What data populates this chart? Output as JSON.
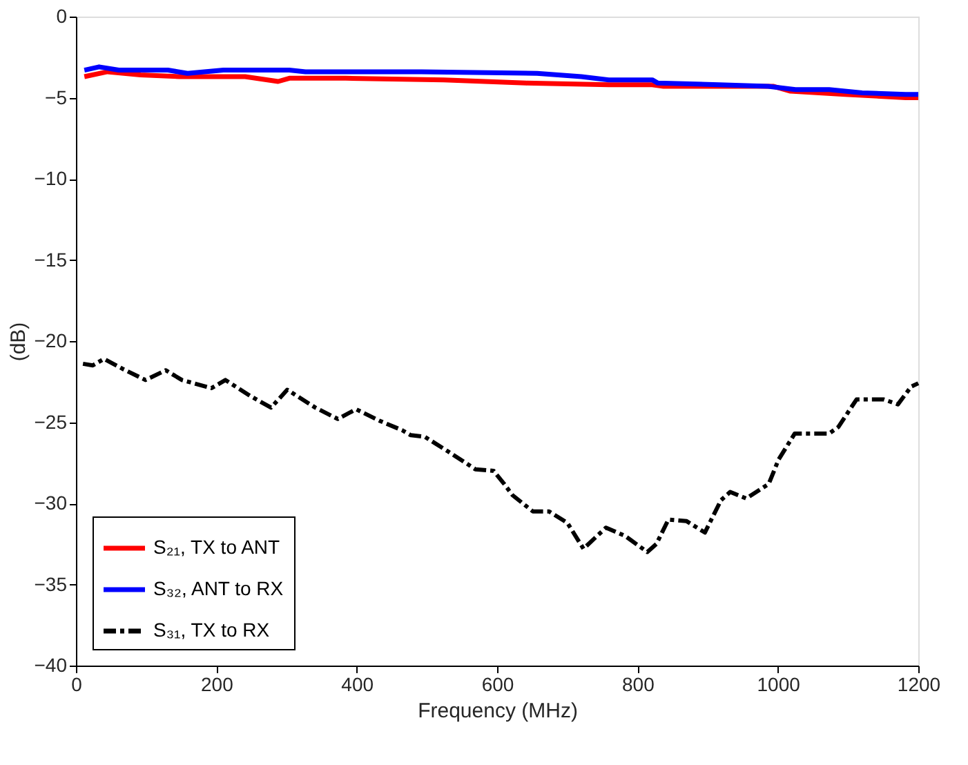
{
  "chart_data": {
    "type": "line",
    "xlabel": "Frequency (MHz)",
    "ylabel": "(dB)",
    "xlim": [
      0,
      1200
    ],
    "xticks": [
      0,
      200,
      400,
      600,
      800,
      1000,
      1200
    ],
    "ylim": [
      -40,
      0
    ],
    "yticks": [
      -40,
      -35,
      -30,
      -25,
      -20,
      -15,
      -10,
      -5,
      0
    ],
    "grid": false,
    "legend": "bottom left",
    "series": [
      {
        "name": "S₂₁, TX to ANT",
        "color": "#ff0000",
        "line_style": "solid",
        "x": [
          12,
          45,
          92,
          147,
          241,
          288,
          304,
          384,
          524,
          641,
          759,
          821,
          837,
          994,
          1018,
          1096,
          1182,
          1200
        ],
        "values": [
          -3.7,
          -3.4,
          -3.6,
          -3.7,
          -3.7,
          -4.0,
          -3.8,
          -3.8,
          -3.9,
          -4.1,
          -4.2,
          -4.2,
          -4.3,
          -4.3,
          -4.6,
          -4.8,
          -5.0,
          -5.0
        ]
      },
      {
        "name": "S₃₂, ANT to RX",
        "color": "#0000ff",
        "line_style": "solid",
        "x": [
          12,
          33,
          61,
          131,
          159,
          210,
          272,
          304,
          327,
          453,
          492,
          657,
          720,
          759,
          821,
          829,
          916,
          986,
          1025,
          1073,
          1120,
          1182,
          1200
        ],
        "values": [
          -3.3,
          -3.1,
          -3.3,
          -3.3,
          -3.5,
          -3.3,
          -3.3,
          -3.3,
          -3.4,
          -3.4,
          -3.4,
          -3.5,
          -3.7,
          -3.9,
          -3.9,
          -4.1,
          -4.2,
          -4.3,
          -4.5,
          -4.5,
          -4.7,
          -4.8,
          -4.8
        ]
      },
      {
        "name": "S₃₁, TX to RX",
        "color": "#000000",
        "line_style": "dashdot",
        "x": [
          10,
          24,
          40,
          66,
          99,
          128,
          151,
          193,
          213,
          249,
          278,
          301,
          341,
          373,
          399,
          432,
          465,
          477,
          497,
          530,
          569,
          595,
          610,
          622,
          651,
          674,
          700,
          723,
          755,
          782,
          814,
          827,
          844,
          870,
          896,
          919,
          932,
          955,
          987,
          1001,
          1024,
          1073,
          1086,
          1112,
          1151,
          1171,
          1190,
          1200
        ],
        "values": [
          -21.4,
          -21.5,
          -21.1,
          -21.7,
          -22.4,
          -21.8,
          -22.4,
          -22.9,
          -22.4,
          -23.4,
          -24.1,
          -23.0,
          -24.1,
          -24.8,
          -24.2,
          -24.9,
          -25.5,
          -25.8,
          -25.9,
          -26.8,
          -27.9,
          -28.0,
          -28.8,
          -29.5,
          -30.5,
          -30.5,
          -31.2,
          -32.8,
          -31.5,
          -32.0,
          -33.0,
          -32.5,
          -31.0,
          -31.1,
          -31.8,
          -29.8,
          -29.3,
          -29.7,
          -28.8,
          -27.3,
          -25.7,
          -25.7,
          -25.3,
          -23.6,
          -23.6,
          -23.9,
          -22.8,
          -22.6
        ]
      }
    ]
  }
}
